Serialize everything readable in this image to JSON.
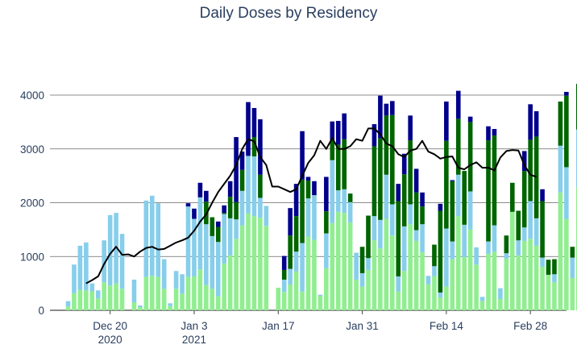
{
  "chart_data": {
    "type": "bar",
    "stacked": true,
    "title": "Daily Doses by Residency",
    "xlabel": "",
    "ylabel": "",
    "ylim": [
      0,
      4500
    ],
    "grid": true,
    "legend": "none",
    "y_ticks": [
      0,
      1000,
      2000,
      3000,
      4000
    ],
    "y_tick_labels": [
      "0",
      "1000",
      "2000",
      "3000",
      "4000"
    ],
    "x_ticks": [
      {
        "day": 7,
        "label_lines": [
          "Dec 20",
          "2020"
        ]
      },
      {
        "day": 21,
        "label_lines": [
          "Jan 3",
          "2021"
        ]
      },
      {
        "day": 35,
        "label_lines": [
          "Jan 17"
        ]
      },
      {
        "day": 49,
        "label_lines": [
          "Jan 31"
        ]
      },
      {
        "day": 63,
        "label_lines": [
          "Feb 14"
        ]
      },
      {
        "day": 77,
        "label_lines": [
          "Feb 28"
        ]
      }
    ],
    "x_start_date": "2020-12-13",
    "series_colors": [
      "#90ee90",
      "#87ceeb",
      "#006400",
      "#00008b"
    ],
    "line_color": "#000000",
    "bars": [
      [
        0,
        70,
        100,
        0,
        0
      ],
      [
        1,
        320,
        530,
        0,
        0
      ],
      [
        2,
        380,
        820,
        0,
        0
      ],
      [
        3,
        370,
        890,
        0,
        0
      ],
      [
        4,
        350,
        150,
        0,
        0
      ],
      [
        5,
        220,
        150,
        0,
        0
      ],
      [
        6,
        520,
        780,
        0,
        0
      ],
      [
        7,
        460,
        1310,
        0,
        0
      ],
      [
        8,
        500,
        1310,
        0,
        0
      ],
      [
        9,
        400,
        1020,
        0,
        0
      ],
      [
        10,
        0,
        0,
        0,
        0
      ],
      [
        11,
        150,
        420,
        0,
        0
      ],
      [
        12,
        60,
        30,
        0,
        0
      ],
      [
        13,
        620,
        1420,
        0,
        0
      ],
      [
        14,
        640,
        1490,
        0,
        0
      ],
      [
        15,
        620,
        1370,
        0,
        0
      ],
      [
        16,
        400,
        550,
        0,
        0
      ],
      [
        17,
        80,
        50,
        0,
        0
      ],
      [
        18,
        400,
        330,
        0,
        0
      ],
      [
        19,
        310,
        360,
        0,
        0
      ],
      [
        20,
        620,
        1310,
        0,
        60
      ],
      [
        21,
        630,
        1070,
        0,
        190
      ],
      [
        22,
        760,
        1340,
        0,
        270
      ],
      [
        23,
        470,
        1130,
        420,
        200
      ],
      [
        24,
        400,
        980,
        350,
        0
      ],
      [
        25,
        260,
        1010,
        280,
        100
      ],
      [
        26,
        870,
        920,
        20,
        140
      ],
      [
        27,
        1020,
        690,
        400,
        290
      ],
      [
        28,
        1330,
        360,
        320,
        1210
      ],
      [
        29,
        1580,
        640,
        390,
        340
      ],
      [
        30,
        1800,
        1070,
        0,
        1000
      ],
      [
        31,
        1750,
        1110,
        360,
        540
      ],
      [
        32,
        1720,
        370,
        430,
        1030
      ],
      [
        33,
        1570,
        370,
        0,
        0
      ],
      [
        34,
        0,
        0,
        0,
        0
      ],
      [
        35,
        420,
        0,
        0,
        0
      ],
      [
        36,
        340,
        230,
        180,
        260
      ],
      [
        37,
        480,
        290,
        620,
        510
      ],
      [
        38,
        720,
        370,
        660,
        600
      ],
      [
        39,
        350,
        900,
        1180,
        900
      ],
      [
        40,
        1370,
        710,
        330,
        70
      ],
      [
        41,
        1310,
        830,
        0,
        260
      ],
      [
        42,
        270,
        20,
        0,
        0
      ],
      [
        43,
        780,
        650,
        410,
        640
      ],
      [
        44,
        1620,
        1170,
        380,
        340
      ],
      [
        45,
        1830,
        400,
        850,
        440
      ],
      [
        46,
        1810,
        440,
        930,
        480
      ],
      [
        47,
        1630,
        380,
        160,
        0
      ],
      [
        48,
        570,
        500,
        0,
        0
      ],
      [
        49,
        440,
        250,
        490,
        0
      ],
      [
        50,
        750,
        220,
        790,
        0
      ],
      [
        51,
        1300,
        450,
        1300,
        410
      ],
      [
        52,
        1150,
        530,
        1520,
        790
      ],
      [
        53,
        1700,
        820,
        1100,
        220
      ],
      [
        54,
        1390,
        580,
        1660,
        260
      ],
      [
        55,
        350,
        280,
        1400,
        320
      ],
      [
        56,
        730,
        830,
        970,
        380
      ],
      [
        57,
        1600,
        370,
        1190,
        460
      ],
      [
        58,
        1290,
        200,
        700,
        440
      ],
      [
        59,
        1080,
        520,
        330,
        260
      ],
      [
        60,
        480,
        160,
        0,
        0
      ],
      [
        61,
        630,
        190,
        400,
        0
      ],
      [
        62,
        240,
        90,
        1520,
        130
      ],
      [
        63,
        440,
        1080,
        1630,
        730
      ],
      [
        64,
        950,
        330,
        1120,
        20
      ],
      [
        65,
        1750,
        770,
        1040,
        520
      ],
      [
        66,
        990,
        600,
        1000,
        0
      ],
      [
        67,
        1500,
        710,
        1290,
        100
      ],
      [
        68,
        850,
        320,
        0,
        0
      ],
      [
        69,
        170,
        80,
        0,
        0
      ],
      [
        70,
        1050,
        230,
        1880,
        260
      ],
      [
        71,
        1090,
        490,
        1670,
        120
      ],
      [
        72,
        210,
        200,
        0,
        0
      ],
      [
        73,
        960,
        100,
        330,
        0
      ],
      [
        74,
        1830,
        0,
        540,
        0
      ],
      [
        75,
        1020,
        280,
        550,
        0
      ],
      [
        76,
        1290,
        250,
        1050,
        370
      ],
      [
        77,
        1330,
        700,
        1140,
        660
      ],
      [
        78,
        1200,
        510,
        1520,
        470
      ],
      [
        79,
        810,
        170,
        1050,
        220
      ],
      [
        80,
        660,
        0,
        280,
        0
      ],
      [
        81,
        520,
        150,
        280,
        0
      ],
      [
        82,
        2190,
        870,
        820,
        0
      ],
      [
        83,
        1700,
        960,
        1330,
        70
      ],
      [
        84,
        600,
        380,
        200,
        0
      ],
      [
        85,
        2290,
        1070,
        850,
        0
      ]
    ],
    "moving_average": [
      [
        3,
        500
      ],
      [
        4,
        560
      ],
      [
        5,
        630
      ],
      [
        6,
        860
      ],
      [
        7,
        1050
      ],
      [
        8,
        1180
      ],
      [
        9,
        1030
      ],
      [
        10,
        1040
      ],
      [
        11,
        1000
      ],
      [
        12,
        1090
      ],
      [
        13,
        1160
      ],
      [
        14,
        1180
      ],
      [
        15,
        1130
      ],
      [
        16,
        1140
      ],
      [
        17,
        1200
      ],
      [
        18,
        1260
      ],
      [
        19,
        1300
      ],
      [
        20,
        1350
      ],
      [
        21,
        1480
      ],
      [
        22,
        1650
      ],
      [
        23,
        1780
      ],
      [
        24,
        2000
      ],
      [
        25,
        2200
      ],
      [
        26,
        2350
      ],
      [
        27,
        2500
      ],
      [
        28,
        2700
      ],
      [
        29,
        3000
      ],
      [
        30,
        3180
      ],
      [
        31,
        3140
      ],
      [
        32,
        2850
      ],
      [
        33,
        2700
      ],
      [
        34,
        2300
      ],
      [
        35,
        2300
      ],
      [
        36,
        2250
      ],
      [
        37,
        2200
      ],
      [
        38,
        2250
      ],
      [
        39,
        2500
      ],
      [
        40,
        2740
      ],
      [
        41,
        2880
      ],
      [
        42,
        3150
      ],
      [
        43,
        3000
      ],
      [
        44,
        3200
      ],
      [
        45,
        3000
      ],
      [
        46,
        3000
      ],
      [
        47,
        3050
      ],
      [
        48,
        3180
      ],
      [
        49,
        3150
      ],
      [
        50,
        3380
      ],
      [
        51,
        3380
      ],
      [
        52,
        3270
      ],
      [
        53,
        3100
      ],
      [
        54,
        3050
      ],
      [
        55,
        2900
      ],
      [
        56,
        2850
      ],
      [
        57,
        2970
      ],
      [
        58,
        3000
      ],
      [
        59,
        3150
      ],
      [
        60,
        2950
      ],
      [
        61,
        2900
      ],
      [
        62,
        2820
      ],
      [
        63,
        2850
      ],
      [
        64,
        2860
      ],
      [
        65,
        2650
      ],
      [
        66,
        2620
      ],
      [
        67,
        2700
      ],
      [
        68,
        2750
      ],
      [
        69,
        2650
      ],
      [
        70,
        2650
      ],
      [
        71,
        2600
      ],
      [
        72,
        2840
      ],
      [
        73,
        2960
      ],
      [
        74,
        2980
      ],
      [
        75,
        2970
      ],
      [
        76,
        2700
      ],
      [
        77,
        2520
      ],
      [
        78,
        2480
      ]
    ]
  }
}
